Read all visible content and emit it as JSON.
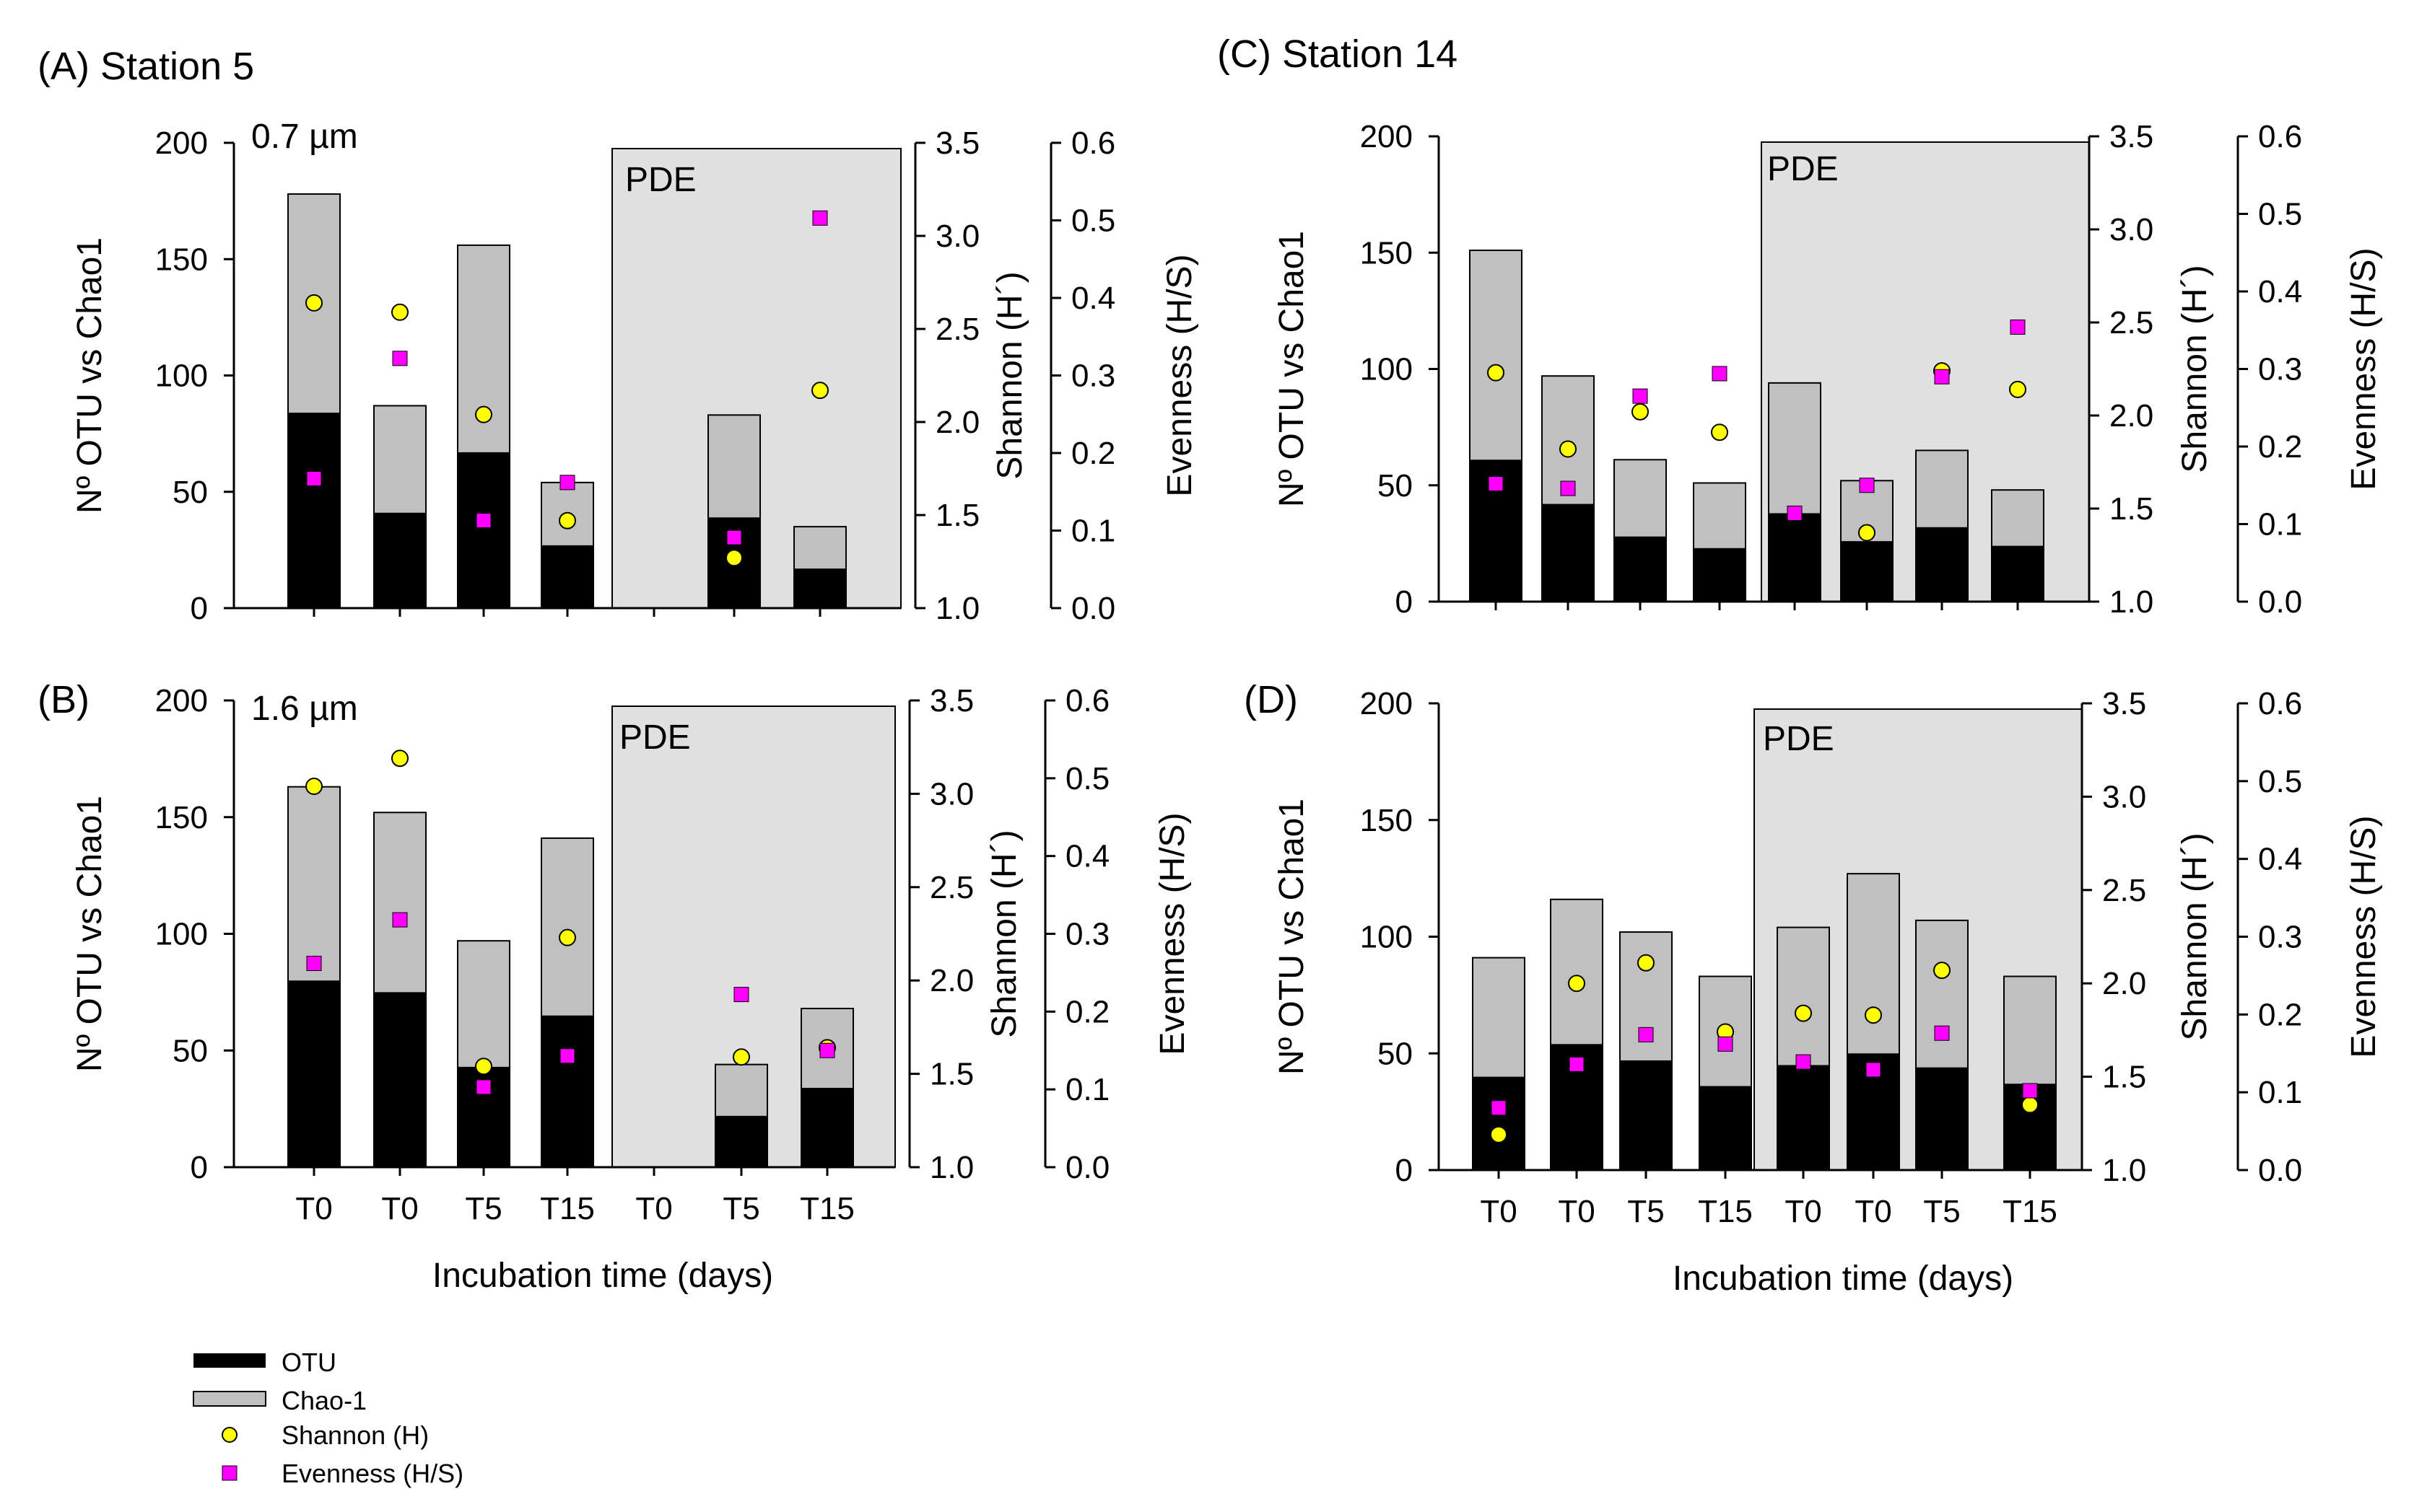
{
  "legend": {
    "otu": "OTU",
    "chao": "Chao-1",
    "shannon": "Shannon (H)",
    "evenness": "Evenness (H/S)"
  },
  "colors": {
    "otu": "#000000",
    "chao": "#c0c0c0",
    "shannon": "#ffff00",
    "evenness": "#ff00ff",
    "pde_shade": "#e0e0e0"
  },
  "axes": {
    "left_ticks": [
      "0",
      "50",
      "100",
      "150",
      "200"
    ],
    "shannon_ticks": [
      "1.0",
      "1.5",
      "2.0",
      "2.5",
      "3.0",
      "3.5"
    ],
    "evenness_ticks": [
      "0.0",
      "0.1",
      "0.2",
      "0.3",
      "0.4",
      "0.5",
      "0.6"
    ]
  },
  "chart_data": [
    {
      "type": "bar",
      "id": "A",
      "title": "(A) Station 5",
      "subtitle": "0.7 µm",
      "pde_label": "PDE",
      "categories": [
        "T0",
        "T0",
        "T5",
        "T15",
        "T0",
        "T5",
        "T15"
      ],
      "show_tick_labels": false,
      "xlabel": "",
      "ylabel": "Nº OTU vs Chao1",
      "y2label": "Shannon (H´)",
      "y3label": "Evenness (H/S)",
      "ylim": [
        0,
        200
      ],
      "y2lim": [
        1.0,
        3.5
      ],
      "y3lim": [
        0.0,
        0.6
      ],
      "pde_start_index": 4,
      "series": [
        {
          "name": "OTU",
          "values": [
            84,
            41,
            67,
            27,
            0,
            39,
            17
          ]
        },
        {
          "name": "Chao-1",
          "values": [
            178,
            87,
            156,
            54,
            0,
            83,
            35
          ]
        },
        {
          "name": "Shannon (H)",
          "values": [
            2.64,
            2.59,
            2.04,
            1.47,
            null,
            1.27,
            2.17
          ]
        },
        {
          "name": "Evenness (H/S)",
          "values": [
            0.167,
            0.322,
            0.113,
            0.162,
            null,
            0.091,
            0.503
          ]
        }
      ]
    },
    {
      "type": "bar",
      "id": "B",
      "title": "(B)",
      "subtitle": "1.6 µm",
      "pde_label": "PDE",
      "categories": [
        "T0",
        "T0",
        "T5",
        "T15",
        "T0",
        "T5",
        "T15"
      ],
      "show_tick_labels": true,
      "xlabel": "Incubation time  (days)",
      "ylabel": "Nº OTU vs Chao1",
      "y2label": "Shannon (H´)",
      "y3label": "Evenness (H/S)",
      "ylim": [
        0,
        200
      ],
      "y2lim": [
        1.0,
        3.5
      ],
      "y3lim": [
        0.0,
        0.6
      ],
      "pde_start_index": 4,
      "series": [
        {
          "name": "OTU",
          "values": [
            80,
            75,
            43,
            65,
            0,
            22,
            34
          ]
        },
        {
          "name": "Chao-1",
          "values": [
            163,
            152,
            97,
            141,
            0,
            44,
            68
          ]
        },
        {
          "name": "Shannon (H)",
          "values": [
            3.04,
            3.19,
            1.54,
            2.23,
            null,
            1.59,
            1.64
          ]
        },
        {
          "name": "Evenness (H/S)",
          "values": [
            0.262,
            0.318,
            0.103,
            0.143,
            null,
            0.222,
            0.15
          ]
        }
      ]
    },
    {
      "type": "bar",
      "id": "C",
      "title": "(C) Station 14",
      "subtitle": "",
      "pde_label": "PDE",
      "categories": [
        "T0",
        "T0",
        "T5",
        "T15",
        "T0",
        "T0",
        "T5",
        "T15"
      ],
      "show_tick_labels": false,
      "xlabel": "",
      "ylabel": "Nº OTU vs Chao1",
      "y2label": "Shannon (H´)",
      "y3label": "Evenness (H/S)",
      "ylim": [
        0,
        200
      ],
      "y2lim": [
        1.0,
        3.5
      ],
      "y3lim": [
        0.0,
        0.6
      ],
      "pde_start_index": 4,
      "series": [
        {
          "name": "OTU",
          "values": [
            61,
            42,
            28,
            23,
            38,
            26,
            32,
            24
          ]
        },
        {
          "name": "Chao-1",
          "values": [
            151,
            97,
            61,
            51,
            94,
            52,
            65,
            48
          ]
        },
        {
          "name": "Shannon (H)",
          "values": [
            2.23,
            1.82,
            2.02,
            1.91,
            null,
            1.37,
            2.24,
            2.14
          ]
        },
        {
          "name": "Evenness (H/S)",
          "values": [
            0.152,
            0.146,
            0.265,
            0.294,
            0.114,
            0.15,
            0.29,
            0.354
          ]
        }
      ]
    },
    {
      "type": "bar",
      "id": "D",
      "title": "(D)",
      "subtitle": "",
      "pde_label": "PDE",
      "categories": [
        "T0",
        "T0",
        "T5",
        "T15",
        "T0",
        "T0",
        "T5",
        "T15"
      ],
      "show_tick_labels": true,
      "xlabel": "Incubation time  (days)",
      "ylabel": "Nº OTU vs Chao1",
      "y2label": "Shannon (H´)",
      "y3label": "Evenness (H/S)",
      "ylim": [
        0,
        200
      ],
      "y2lim": [
        1.0,
        3.5
      ],
      "y3lim": [
        0.0,
        0.6
      ],
      "pde_start_index": 4,
      "series": [
        {
          "name": "OTU",
          "values": [
            40,
            54,
            47,
            36,
            45,
            50,
            44,
            37
          ]
        },
        {
          "name": "Chao-1",
          "values": [
            91,
            116,
            102,
            83,
            104,
            127,
            107,
            83
          ]
        },
        {
          "name": "Shannon (H)",
          "values": [
            1.19,
            2.0,
            2.11,
            1.74,
            1.84,
            1.83,
            2.07,
            1.35
          ]
        },
        {
          "name": "Evenness (H/S)",
          "values": [
            0.08,
            0.136,
            0.174,
            0.162,
            0.139,
            0.129,
            0.176,
            0.102
          ]
        }
      ]
    }
  ]
}
